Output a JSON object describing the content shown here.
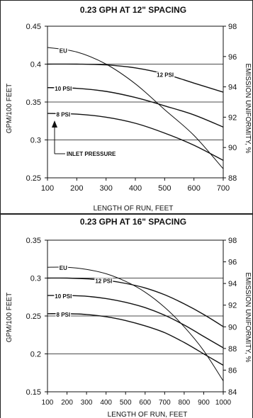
{
  "chart_data": [
    {
      "type": "line",
      "title": "0.23 GPH AT 12\" SPACING",
      "xlabel": "LENGTH OF RUN, FEET",
      "ylabel": "GPM/100 FEET",
      "y2label": "EMISSION UNIFORMITY, %",
      "xlim": [
        100,
        700
      ],
      "ylim": [
        0.25,
        0.45
      ],
      "y2lim": [
        88,
        98
      ],
      "xticks": [
        "100",
        "200",
        "300",
        "400",
        "500",
        "600",
        "700"
      ],
      "yticks": [
        "0.25",
        "0.3",
        "0.35",
        "0.4",
        "0.45"
      ],
      "y2ticks": [
        "88",
        "90",
        "92",
        "94",
        "96",
        "98"
      ],
      "gridlines_y": [
        0.3,
        0.35,
        0.4
      ],
      "series": [
        {
          "name": "EU",
          "axis": "right",
          "x": [
            100,
            200,
            300,
            400,
            500,
            600,
            700
          ],
          "values": [
            96.6,
            96.3,
            95.5,
            94.2,
            92.5,
            90.8,
            88.6
          ]
        },
        {
          "name": "12 PSI",
          "axis": "left",
          "x": [
            100,
            200,
            300,
            400,
            500,
            600,
            700
          ],
          "values": [
            0.4,
            0.4,
            0.399,
            0.395,
            0.387,
            0.375,
            0.363
          ]
        },
        {
          "name": "10 PSI",
          "axis": "left",
          "x": [
            100,
            200,
            300,
            400,
            500,
            600,
            700
          ],
          "values": [
            0.369,
            0.368,
            0.364,
            0.356,
            0.345,
            0.333,
            0.317
          ]
        },
        {
          "name": "8 PSI",
          "axis": "left",
          "x": [
            100,
            200,
            300,
            400,
            500,
            600,
            700
          ],
          "values": [
            0.335,
            0.334,
            0.33,
            0.322,
            0.309,
            0.293,
            0.273
          ]
        }
      ],
      "annotation": "INLET PRESSURE"
    },
    {
      "type": "line",
      "title": "0.23 GPH AT 16\" SPACING",
      "xlabel": "LENGTH OF RUN, FEET",
      "ylabel": "GPM/100 FEET",
      "y2label": "EMISSION UNIFORMITY, %",
      "xlim": [
        100,
        1000
      ],
      "ylim": [
        0.15,
        0.35
      ],
      "y2lim": [
        84,
        98
      ],
      "xticks": [
        "100",
        "200",
        "300",
        "400",
        "500",
        "600",
        "700",
        "800",
        "900",
        "1000"
      ],
      "yticks": [
        "0.15",
        "0.2",
        "0.25",
        "0.3",
        "0.35"
      ],
      "y2ticks": [
        "84",
        "86",
        "88",
        "90",
        "92",
        "94",
        "96",
        "98"
      ],
      "gridlines_y": [
        0.2,
        0.25,
        0.3
      ],
      "series": [
        {
          "name": "EU",
          "axis": "right",
          "x": [
            100,
            200,
            300,
            400,
            500,
            600,
            700,
            800,
            900,
            1000
          ],
          "values": [
            95.5,
            95.5,
            95.3,
            94.9,
            94.2,
            93.2,
            91.8,
            90.0,
            87.8,
            85.0
          ]
        },
        {
          "name": "12 PSI",
          "axis": "left",
          "x": [
            100,
            200,
            300,
            400,
            500,
            600,
            700,
            800,
            900,
            1000
          ],
          "values": [
            0.3,
            0.3,
            0.299,
            0.297,
            0.293,
            0.287,
            0.278,
            0.266,
            0.252,
            0.236
          ]
        },
        {
          "name": "10 PSI",
          "axis": "left",
          "x": [
            100,
            200,
            300,
            400,
            500,
            600,
            700,
            800,
            900,
            1000
          ],
          "values": [
            0.277,
            0.277,
            0.276,
            0.273,
            0.268,
            0.261,
            0.251,
            0.238,
            0.223,
            0.208
          ]
        },
        {
          "name": "8 PSI",
          "axis": "left",
          "x": [
            100,
            200,
            300,
            400,
            500,
            600,
            700,
            800,
            900,
            1000
          ],
          "values": [
            0.253,
            0.253,
            0.252,
            0.249,
            0.244,
            0.237,
            0.228,
            0.215,
            0.2,
            0.185
          ]
        }
      ]
    }
  ]
}
